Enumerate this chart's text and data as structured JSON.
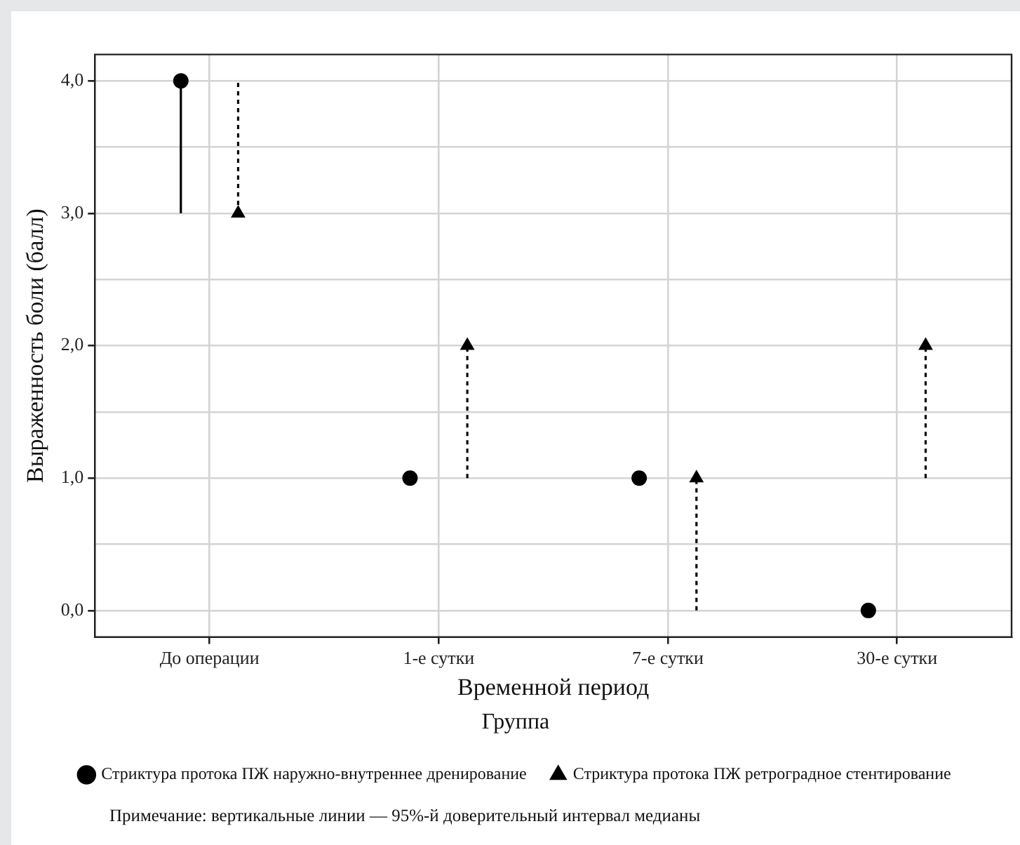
{
  "chart_data": {
    "type": "scatter",
    "xlabel": "Временной период",
    "ylabel": "Выраженность боли (балл)",
    "legend_title": "Группа",
    "categories": [
      "До операции",
      "1-е сутки",
      "7-е сутки",
      "30-е сутки"
    ],
    "series": [
      {
        "name": "Стриктура протока ПЖ наружно-внутреннее дренирование",
        "color": "#000000",
        "marker": "circle",
        "line_style": "solid",
        "values": [
          4,
          1,
          1,
          0
        ],
        "errors": [
          [
            3,
            4
          ],
          null,
          null,
          null
        ]
      },
      {
        "name": "Стриктура протока ПЖ ретроградное стентирование",
        "color": "#000000",
        "marker": "triangle",
        "line_style": "dashed",
        "values": [
          3,
          2,
          1,
          2
        ],
        "errors": [
          [
            3,
            4
          ],
          [
            1,
            2
          ],
          [
            0,
            1
          ],
          [
            1,
            2
          ]
        ]
      }
    ],
    "ylim": [
      -0.2,
      4.2
    ],
    "yticks": [
      {
        "value": 0,
        "label": "0,0"
      },
      {
        "value": 0.5,
        "label": null
      },
      {
        "value": 1,
        "label": "1,0"
      },
      {
        "value": 1.5,
        "label": null
      },
      {
        "value": 2,
        "label": "2,0"
      },
      {
        "value": 2.5,
        "label": null
      },
      {
        "value": 3,
        "label": "3,0"
      },
      {
        "value": 3.5,
        "label": null
      },
      {
        "value": 4,
        "label": "4,0"
      }
    ],
    "grid": true,
    "legend": "bottom",
    "annotations": [
      "Примечание: вертикальные линии — 95%-й доверительный интервал медианы"
    ]
  }
}
